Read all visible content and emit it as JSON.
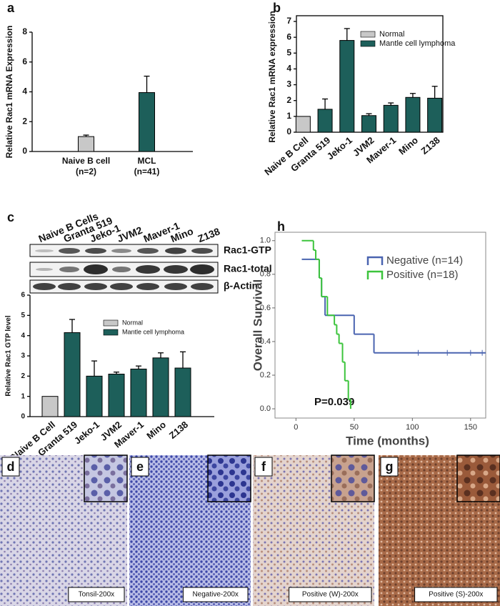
{
  "chart_data": [
    {
      "type": "bar",
      "panel": "a",
      "ylabel": "Relative Rac1 mRNA Expression",
      "categories": [
        "Naive B cell",
        "MCL"
      ],
      "category_counts": [
        "(n=2)",
        "(n=41)"
      ],
      "series": [
        {
          "color": "#c8c8c8",
          "values": [
            1.0,
            null
          ],
          "errors": [
            0.1,
            null
          ]
        },
        {
          "color": "#1d5f5a",
          "values": [
            null,
            3.95
          ],
          "errors": [
            null,
            1.1
          ]
        }
      ],
      "ylim": [
        0,
        8
      ],
      "yticks": [
        0,
        2,
        4,
        6,
        8
      ]
    },
    {
      "type": "bar",
      "panel": "b",
      "ylabel": "Relative Rac1 mRNA expression",
      "categories": [
        "Naive B Cell",
        "Granta 519",
        "Jeko-1",
        "JVM2",
        "Maver-1",
        "Mino",
        "Z138"
      ],
      "series": [
        {
          "name": "Normal",
          "color": "#c8c8c8",
          "values": [
            1.0,
            null,
            null,
            null,
            null,
            null,
            null
          ],
          "errors": [
            null,
            null,
            null,
            null,
            null,
            null,
            null
          ]
        },
        {
          "name": "Mantle cell lymphoma",
          "color": "#1d5f5a",
          "values": [
            null,
            1.45,
            5.8,
            1.05,
            1.7,
            2.2,
            2.15
          ],
          "errors": [
            null,
            0.65,
            0.75,
            0.12,
            0.15,
            0.25,
            0.75
          ]
        }
      ],
      "ylim": [
        0,
        7
      ],
      "yticks": [
        0,
        1,
        2,
        3,
        4,
        5,
        6,
        7
      ]
    },
    {
      "type": "bar",
      "ylabel": "Relative Rac1 GTP level",
      "categories": [
        "Naive B Cell",
        "Granta 519",
        "Jeko-1",
        "JVM2",
        "Maver-1",
        "Mino",
        "Z138"
      ],
      "series": [
        {
          "name": "Normal",
          "color": "#c8c8c8",
          "values": [
            1.0,
            null,
            null,
            null,
            null,
            null,
            null
          ],
          "errors": [
            null,
            null,
            null,
            null,
            null,
            null,
            null
          ]
        },
        {
          "name": "Mantle cell lymphoma",
          "color": "#1d5f5a",
          "values": [
            null,
            4.15,
            2.0,
            2.1,
            2.35,
            2.9,
            2.4
          ],
          "errors": [
            null,
            0.65,
            0.75,
            0.1,
            0.15,
            0.25,
            0.8
          ]
        }
      ],
      "ylim": [
        0,
        6
      ],
      "yticks": [
        0,
        1,
        2,
        3,
        4,
        5,
        6
      ]
    },
    {
      "type": "survival",
      "panel": "h",
      "xlabel": "Time (months)",
      "ylabel": "Overall Survival",
      "annotation": "P=0.039",
      "series": [
        {
          "name": "Negative (n=14)",
          "color": "#4a64b0",
          "x": [
            5,
            20,
            22,
            25,
            50,
            67,
            163
          ],
          "y": [
            0.889,
            0.778,
            0.667,
            0.556,
            0.444,
            0.333,
            0.333
          ],
          "censored": [
            105,
            130,
            150,
            160
          ]
        },
        {
          "name": "Positive (n=18)",
          "color": "#3cc43c",
          "x": [
            5,
            15,
            17,
            20,
            22,
            27,
            33,
            35,
            37,
            40,
            42,
            45,
            47
          ],
          "y": [
            1.0,
            0.944,
            0.889,
            0.778,
            0.667,
            0.556,
            0.5,
            0.444,
            0.389,
            0.278,
            0.167,
            0.056,
            0.0
          ],
          "censored": []
        }
      ],
      "xlim": [
        -18,
        163
      ],
      "xticks": [
        0,
        50,
        100,
        150
      ],
      "ylim": [
        -0.055,
        1.05
      ],
      "yticks": [
        {
          "value": 0,
          "label": "0.0"
        },
        0.2,
        0.4,
        0.6,
        0.8,
        {
          "value": 1,
          "label": "1.0"
        }
      ]
    }
  ],
  "blot": {
    "panel": "c",
    "lanes": [
      "Naive B Cells",
      "Granta 519",
      "Jeko-1",
      "JVM2",
      "Maver-1",
      "Mino",
      "Z138"
    ],
    "rows": [
      "Rac1-GTP",
      "Rac1-total",
      "β-Actin"
    ]
  },
  "micrographs": [
    {
      "panel": "d",
      "caption": "Tonsil-200x"
    },
    {
      "panel": "e",
      "caption": "Negative-200x"
    },
    {
      "panel": "f",
      "caption": "Positive (W)-200x"
    },
    {
      "panel": "g",
      "caption": "Positive (S)-200x"
    }
  ]
}
